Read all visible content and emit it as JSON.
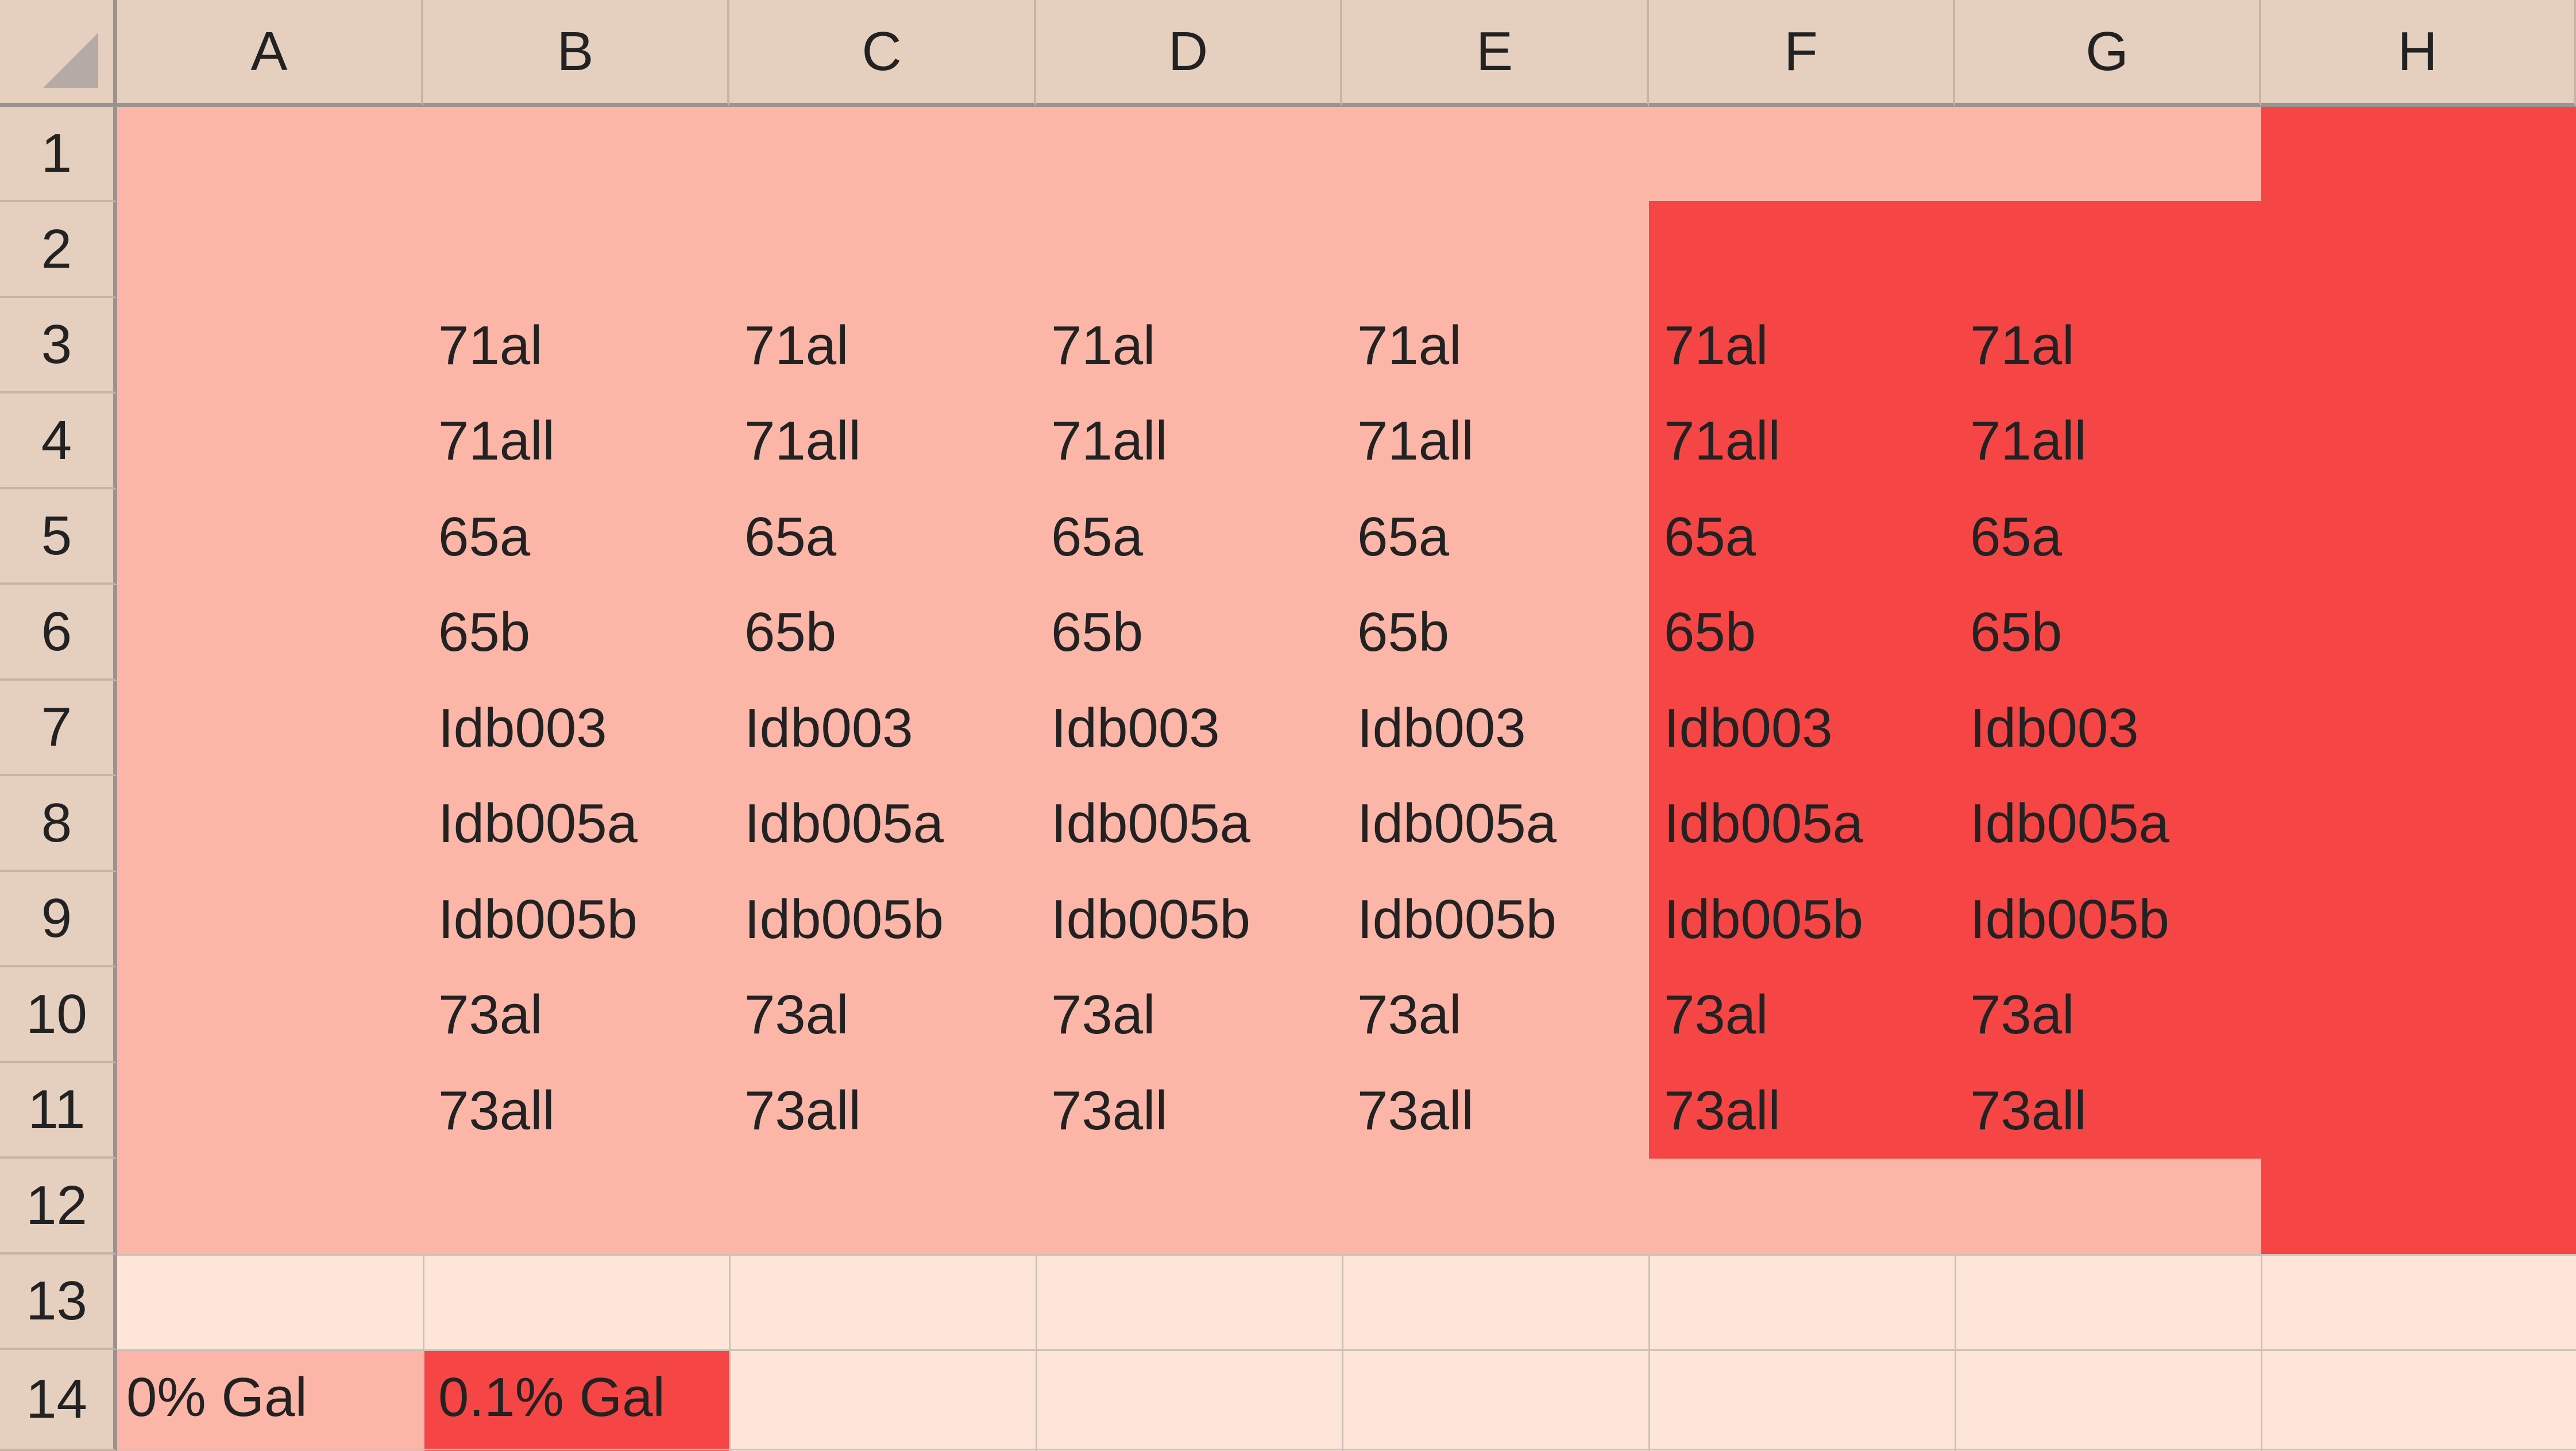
{
  "columns": [
    "A",
    "B",
    "C",
    "D",
    "E",
    "F",
    "G",
    "H"
  ],
  "rows": [
    "1",
    "2",
    "3",
    "4",
    "5",
    "6",
    "7",
    "8",
    "9",
    "10",
    "11",
    "12",
    "13",
    "14"
  ],
  "sample_labels": [
    "71al",
    "71all",
    "65a",
    "65b",
    "Idb003",
    "Idb005a",
    "Idb005b",
    "73al",
    "73all"
  ],
  "legend": {
    "light": {
      "label": "0% Gal",
      "color": "#fbb6a8"
    },
    "red": {
      "label": "0.1% Gal",
      "color": "#f64545"
    }
  },
  "colors": {
    "header_bg": "#e5d0bf",
    "empty_cell_bg": "#fde6d8",
    "light_fill": "#fbb6a8",
    "red_fill": "#f64545"
  }
}
